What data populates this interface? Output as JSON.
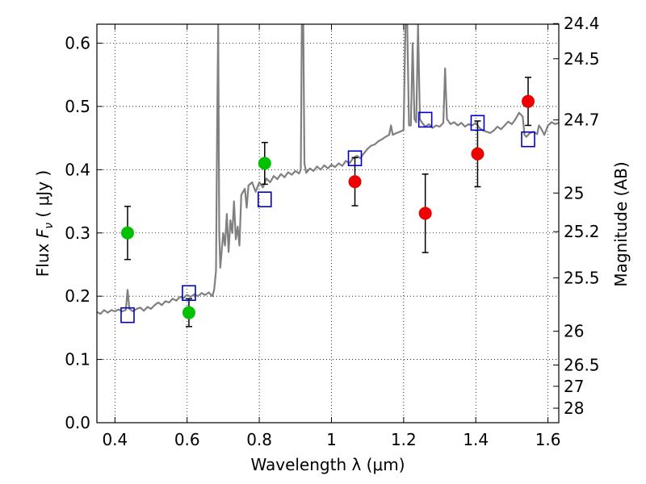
{
  "chart_data": {
    "type": "scatter",
    "xlabel": "Wavelength  λ (μm)",
    "ylabel": "Flux  F_ν  ( μJy )",
    "ylabel_parts": {
      "prefix": "Flux  ",
      "var": "F",
      "sub": "ν",
      "suffix": "  ( μJy )"
    },
    "y2label": "Magnitude (AB)",
    "xlim": [
      0.35,
      1.63
    ],
    "ylim": [
      0.0,
      0.63
    ],
    "xticks": [
      0.4,
      0.6,
      0.8,
      1.0,
      1.2,
      1.4,
      1.6
    ],
    "xtick_labels": [
      "0.4",
      "0.6",
      "0.8",
      "1",
      "1.2",
      "1.4",
      "1.6"
    ],
    "yticks": [
      0.0,
      0.1,
      0.2,
      0.3,
      0.4,
      0.5,
      0.6
    ],
    "ytick_labels": [
      "0.0",
      "0.1",
      "0.2",
      "0.3",
      "0.4",
      "0.5",
      "0.6"
    ],
    "y2ticks": [
      {
        "label": "24.4",
        "mag": 24.4
      },
      {
        "label": "24.5",
        "mag": 24.5
      },
      {
        "label": "24.7",
        "mag": 24.7
      },
      {
        "label": "25",
        "mag": 25.0
      },
      {
        "label": "25.2",
        "mag": 25.2
      },
      {
        "label": "25.5",
        "mag": 25.5
      },
      {
        "label": "26",
        "mag": 26.0
      },
      {
        "label": "26.5",
        "mag": 26.5
      },
      {
        "label": "27",
        "mag": 27.0
      },
      {
        "label": "28",
        "mag": 28.0
      }
    ],
    "grid": true,
    "colors": {
      "model": "#808080",
      "green": "#00c000",
      "red": "#ee0000",
      "box": "#0000cc",
      "errorbar": "#000000",
      "grid": "#000000"
    },
    "series": [
      {
        "name": "model-spectrum",
        "kind": "line",
        "points": [
          [
            0.35,
            0.175
          ],
          [
            0.36,
            0.172
          ],
          [
            0.37,
            0.178
          ],
          [
            0.38,
            0.174
          ],
          [
            0.39,
            0.178
          ],
          [
            0.4,
            0.176
          ],
          [
            0.41,
            0.179
          ],
          [
            0.42,
            0.176
          ],
          [
            0.43,
            0.178
          ],
          [
            0.435,
            0.21
          ],
          [
            0.44,
            0.18
          ],
          [
            0.45,
            0.176
          ],
          [
            0.46,
            0.18
          ],
          [
            0.47,
            0.182
          ],
          [
            0.48,
            0.177
          ],
          [
            0.49,
            0.183
          ],
          [
            0.5,
            0.18
          ],
          [
            0.51,
            0.186
          ],
          [
            0.52,
            0.19
          ],
          [
            0.53,
            0.186
          ],
          [
            0.54,
            0.192
          ],
          [
            0.55,
            0.19
          ],
          [
            0.56,
            0.196
          ],
          [
            0.57,
            0.193
          ],
          [
            0.58,
            0.199
          ],
          [
            0.59,
            0.197
          ],
          [
            0.6,
            0.202
          ],
          [
            0.61,
            0.199
          ],
          [
            0.62,
            0.203
          ],
          [
            0.63,
            0.2
          ],
          [
            0.64,
            0.205
          ],
          [
            0.65,
            0.202
          ],
          [
            0.66,
            0.206
          ],
          [
            0.67,
            0.2
          ],
          [
            0.675,
            0.21
          ],
          [
            0.68,
            0.24
          ],
          [
            0.683,
            0.45
          ],
          [
            0.686,
            0.63
          ],
          [
            0.689,
            0.3
          ],
          [
            0.692,
            0.245
          ],
          [
            0.7,
            0.3
          ],
          [
            0.705,
            0.28
          ],
          [
            0.71,
            0.33
          ],
          [
            0.715,
            0.27
          ],
          [
            0.72,
            0.32
          ],
          [
            0.725,
            0.3
          ],
          [
            0.73,
            0.35
          ],
          [
            0.735,
            0.29
          ],
          [
            0.74,
            0.31
          ],
          [
            0.745,
            0.28
          ],
          [
            0.75,
            0.36
          ],
          [
            0.76,
            0.37
          ],
          [
            0.765,
            0.34
          ],
          [
            0.77,
            0.375
          ],
          [
            0.78,
            0.38
          ],
          [
            0.79,
            0.365
          ],
          [
            0.8,
            0.38
          ],
          [
            0.81,
            0.372
          ],
          [
            0.82,
            0.386
          ],
          [
            0.83,
            0.38
          ],
          [
            0.84,
            0.39
          ],
          [
            0.85,
            0.385
          ],
          [
            0.86,
            0.393
          ],
          [
            0.87,
            0.388
          ],
          [
            0.88,
            0.396
          ],
          [
            0.89,
            0.392
          ],
          [
            0.9,
            0.398
          ],
          [
            0.91,
            0.394
          ],
          [
            0.915,
            0.4
          ],
          [
            0.918,
            0.63
          ],
          [
            0.922,
            0.63
          ],
          [
            0.925,
            0.41
          ],
          [
            0.93,
            0.395
          ],
          [
            0.94,
            0.402
          ],
          [
            0.95,
            0.398
          ],
          [
            0.96,
            0.405
          ],
          [
            0.97,
            0.4
          ],
          [
            0.98,
            0.407
          ],
          [
            0.99,
            0.402
          ],
          [
            1.0,
            0.408
          ],
          [
            1.01,
            0.404
          ],
          [
            1.02,
            0.41
          ],
          [
            1.03,
            0.406
          ],
          [
            1.04,
            0.414
          ],
          [
            1.05,
            0.41
          ],
          [
            1.06,
            0.418
          ],
          [
            1.07,
            0.422
          ],
          [
            1.08,
            0.418
          ],
          [
            1.09,
            0.426
          ],
          [
            1.1,
            0.433
          ],
          [
            1.11,
            0.438
          ],
          [
            1.12,
            0.44
          ],
          [
            1.13,
            0.445
          ],
          [
            1.14,
            0.448
          ],
          [
            1.15,
            0.452
          ],
          [
            1.16,
            0.455
          ],
          [
            1.165,
            0.47
          ],
          [
            1.17,
            0.455
          ],
          [
            1.18,
            0.458
          ],
          [
            1.19,
            0.46
          ],
          [
            1.2,
            0.463
          ],
          [
            1.205,
            0.63
          ],
          [
            1.21,
            0.63
          ],
          [
            1.215,
            0.47
          ],
          [
            1.22,
            0.47
          ],
          [
            1.225,
            0.6
          ],
          [
            1.23,
            0.48
          ],
          [
            1.235,
            0.475
          ],
          [
            1.24,
            0.63
          ],
          [
            1.245,
            0.48
          ],
          [
            1.25,
            0.475
          ],
          [
            1.26,
            0.468
          ],
          [
            1.27,
            0.472
          ],
          [
            1.28,
            0.466
          ],
          [
            1.29,
            0.47
          ],
          [
            1.3,
            0.468
          ],
          [
            1.31,
            0.474
          ],
          [
            1.315,
            0.56
          ],
          [
            1.32,
            0.48
          ],
          [
            1.33,
            0.472
          ],
          [
            1.34,
            0.475
          ],
          [
            1.35,
            0.47
          ],
          [
            1.36,
            0.474
          ],
          [
            1.37,
            0.468
          ],
          [
            1.38,
            0.472
          ],
          [
            1.39,
            0.47
          ],
          [
            1.4,
            0.474
          ],
          [
            1.41,
            0.466
          ],
          [
            1.42,
            0.462
          ],
          [
            1.43,
            0.46
          ],
          [
            1.44,
            0.458
          ],
          [
            1.45,
            0.462
          ],
          [
            1.46,
            0.468
          ],
          [
            1.47,
            0.464
          ],
          [
            1.48,
            0.47
          ],
          [
            1.49,
            0.476
          ],
          [
            1.5,
            0.472
          ],
          [
            1.51,
            0.48
          ],
          [
            1.52,
            0.49
          ],
          [
            1.53,
            0.484
          ],
          [
            1.535,
            0.455
          ],
          [
            1.54,
            0.452
          ],
          [
            1.55,
            0.458
          ],
          [
            1.56,
            0.46
          ],
          [
            1.57,
            0.456
          ],
          [
            1.575,
            0.47
          ],
          [
            1.58,
            0.466
          ],
          [
            1.59,
            0.455
          ],
          [
            1.6,
            0.47
          ],
          [
            1.61,
            0.475
          ],
          [
            1.62,
            0.472
          ],
          [
            1.63,
            0.474
          ]
        ]
      },
      {
        "name": "green-photometry",
        "kind": "circle-errorbar",
        "color": "green",
        "points": [
          {
            "x": 0.435,
            "y": 0.3,
            "err": 0.042
          },
          {
            "x": 0.605,
            "y": 0.174,
            "err": 0.022
          },
          {
            "x": 0.815,
            "y": 0.41,
            "err": 0.033
          }
        ]
      },
      {
        "name": "red-photometry",
        "kind": "circle-errorbar",
        "color": "red",
        "points": [
          {
            "x": 1.065,
            "y": 0.381,
            "err": 0.038
          },
          {
            "x": 1.26,
            "y": 0.331,
            "err": 0.062
          },
          {
            "x": 1.405,
            "y": 0.425,
            "err": 0.052
          },
          {
            "x": 1.545,
            "y": 0.508,
            "err": 0.038
          }
        ]
      },
      {
        "name": "model-synthetic-photometry",
        "kind": "open-square",
        "color": "box",
        "points": [
          {
            "x": 0.435,
            "y": 0.17
          },
          {
            "x": 0.605,
            "y": 0.205
          },
          {
            "x": 0.815,
            "y": 0.353
          },
          {
            "x": 1.065,
            "y": 0.418
          },
          {
            "x": 1.26,
            "y": 0.479
          },
          {
            "x": 1.405,
            "y": 0.474
          },
          {
            "x": 1.545,
            "y": 0.448
          }
        ]
      }
    ]
  }
}
